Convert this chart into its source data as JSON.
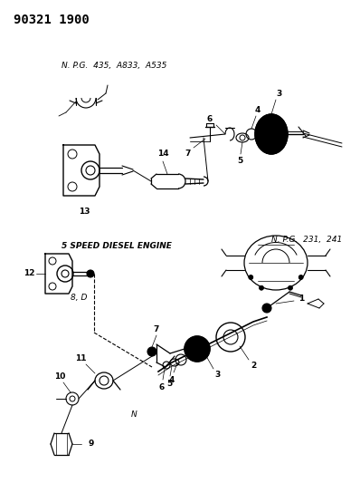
{
  "bg_color": "#f5f5f0",
  "title_text": "90321 1900",
  "title_fontsize": 10,
  "title_fontweight": "bold",
  "title_family": "monospace",
  "label_npg1": "N. P.G.  435,  A833,  A535",
  "label_npg2": "N. P.G.  231,  241",
  "label_5speed": "5 SPEED DIESEL ENGINE",
  "label_8D": "8, D",
  "label_N": "N",
  "font_size_labels": 6.5,
  "font_size_section": 6.5,
  "font_size_npg": 6.5,
  "font_size_title": 10
}
